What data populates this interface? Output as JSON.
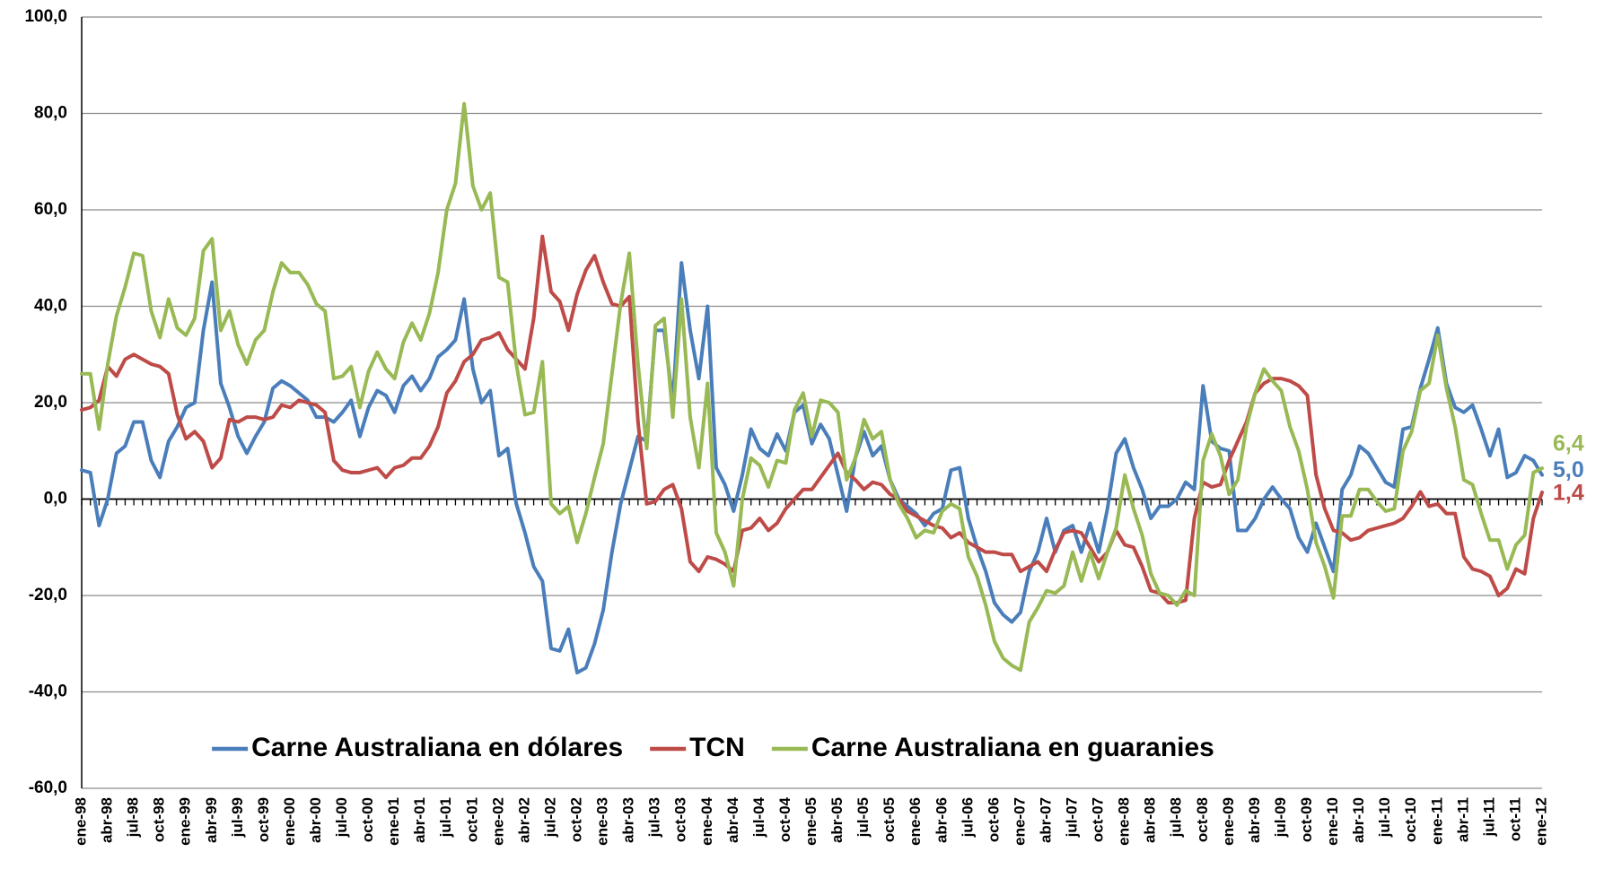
{
  "chart_data": {
    "type": "line",
    "categories": [
      "ene-98",
      null,
      null,
      "abr-98",
      null,
      null,
      "jul-98",
      null,
      null,
      "oct-98",
      null,
      null,
      "ene-99",
      null,
      null,
      "abr-99",
      null,
      null,
      "jul-99",
      null,
      null,
      "oct-99",
      null,
      null,
      "ene-00",
      null,
      null,
      "abr-00",
      null,
      null,
      "jul-00",
      null,
      null,
      "oct-00",
      null,
      null,
      "ene-01",
      null,
      null,
      "abr-01",
      null,
      null,
      "jul-01",
      null,
      null,
      "oct-01",
      null,
      null,
      "ene-02",
      null,
      null,
      "abr-02",
      null,
      null,
      "jul-02",
      null,
      null,
      "oct-02",
      null,
      null,
      "ene-03",
      null,
      null,
      "abr-03",
      null,
      null,
      "jul-03",
      null,
      null,
      "oct-03",
      null,
      null,
      "ene-04",
      null,
      null,
      "abr-04",
      null,
      null,
      "jul-04",
      null,
      null,
      "oct-04",
      null,
      null,
      "ene-05",
      null,
      null,
      "abr-05",
      null,
      null,
      "jul-05",
      null,
      null,
      "oct-05",
      null,
      null,
      "ene-06",
      null,
      null,
      "abr-06",
      null,
      null,
      "jul-06",
      null,
      null,
      "oct-06",
      null,
      null,
      "ene-07",
      null,
      null,
      "abr-07",
      null,
      null,
      "jul-07",
      null,
      null,
      "oct-07",
      null,
      null,
      "ene-08",
      null,
      null,
      "abr-08",
      null,
      null,
      "jul-08",
      null,
      null,
      "oct-08",
      null,
      null,
      "ene-09",
      null,
      null,
      "abr-09",
      null,
      null,
      "jul-09",
      null,
      null,
      "oct-09",
      null,
      null,
      "ene-10",
      null,
      null,
      "abr-10",
      null,
      null,
      "jul-10",
      null,
      null,
      "oct-10",
      null,
      null,
      "ene-11",
      null,
      null,
      "abr-11",
      null,
      null,
      "jul-11",
      null,
      null,
      "oct-11",
      null,
      null,
      "ene-12"
    ],
    "series": [
      {
        "name": "Carne Australiana en dólares",
        "color": "#4a7ebb",
        "values": [
          6,
          5.5,
          -5.5,
          0,
          9.5,
          11,
          16,
          16,
          8,
          4.5,
          12,
          15,
          19,
          20,
          35,
          45,
          24,
          19,
          13,
          9.5,
          13,
          16,
          23,
          24.5,
          23.5,
          22,
          20.5,
          17,
          17,
          16,
          18,
          20.5,
          13,
          19,
          22.5,
          21.5,
          18,
          23.5,
          25.5,
          22.5,
          25,
          29.5,
          31,
          33,
          41.5,
          27,
          20,
          22.5,
          9,
          10.5,
          -1,
          -7,
          -14,
          -17,
          -31,
          -31.5,
          -27,
          -36,
          -35,
          -30,
          -23,
          -11,
          -1,
          6,
          13,
          12,
          35,
          35,
          20,
          49,
          35,
          25,
          40,
          6.5,
          3,
          -2.5,
          5,
          14.5,
          10.5,
          9,
          13.5,
          10,
          18,
          19.5,
          11.5,
          15.5,
          12.5,
          5,
          -2.5,
          8.5,
          14,
          9,
          11,
          4,
          0,
          -1.5,
          -3,
          -5.5,
          -3,
          -2,
          6,
          6.5,
          -4,
          -10,
          -15,
          -21.5,
          -24,
          -25.5,
          -23.5,
          -15,
          -11,
          -4,
          -11,
          -6.5,
          -5.5,
          -11,
          -5,
          -11,
          -2,
          9.5,
          12.5,
          6.5,
          2,
          -4,
          -1.5,
          -1.5,
          0,
          3.5,
          2,
          23.5,
          12,
          10.5,
          10,
          -6.5,
          -6.5,
          -4,
          0,
          2.5,
          0,
          -2,
          -8,
          -11,
          -5,
          -10,
          -15,
          2,
          5,
          11,
          9.5,
          6.5,
          3.5,
          2.5,
          14.5,
          15,
          23,
          29,
          35.5,
          24,
          19,
          18,
          19.5,
          14.5,
          9,
          14.5,
          4.5,
          5.5,
          9,
          8,
          5.0
        ],
        "value_labels": [
          null,
          null,
          null,
          null,
          null,
          null,
          null,
          null,
          null,
          null,
          null,
          null,
          null,
          null,
          null,
          null,
          null,
          null,
          null,
          null,
          null,
          null,
          null,
          null,
          null,
          null,
          null,
          null,
          null,
          null,
          null,
          null,
          null,
          null,
          null,
          null,
          null,
          null,
          null,
          null,
          null,
          null,
          null,
          null,
          null,
          null,
          null,
          null,
          null,
          null,
          null,
          null,
          null,
          null,
          null,
          null,
          null,
          null,
          null,
          null,
          null,
          null,
          null,
          null,
          null,
          null,
          null,
          null,
          null,
          null,
          null,
          null,
          null,
          null,
          null,
          null,
          null,
          null,
          null,
          null,
          null,
          null,
          null,
          null,
          null,
          null,
          null,
          null,
          null,
          null,
          null,
          null,
          null,
          null,
          null,
          null,
          null,
          null,
          null,
          null,
          null,
          null,
          null,
          null,
          null,
          null,
          null,
          null,
          null,
          null,
          null,
          null,
          null,
          null,
          null,
          null,
          null,
          null,
          null,
          null,
          null,
          null,
          null,
          null,
          null,
          null,
          null,
          null,
          null,
          null,
          null,
          null,
          null,
          null,
          null,
          null,
          null,
          null,
          null,
          null,
          null,
          null,
          null,
          null,
          null,
          null,
          null,
          null,
          null,
          null,
          null,
          null,
          null,
          null,
          null,
          null,
          null,
          null,
          null,
          null,
          null,
          null,
          null,
          null,
          null,
          null,
          null,
          null,
          "5,0"
        ]
      },
      {
        "name": "TCN",
        "color": "#be4b48",
        "values": [
          18.5,
          19,
          20.5,
          27.5,
          25.5,
          29,
          30,
          29,
          28,
          27.5,
          26,
          17.5,
          12.5,
          14,
          12,
          6.5,
          8.5,
          16.5,
          16,
          17,
          17,
          16.5,
          17,
          19.5,
          19,
          20.5,
          20,
          19.5,
          18,
          8,
          6,
          5.5,
          5.5,
          6,
          6.5,
          4.5,
          6.5,
          7,
          8.5,
          8.5,
          11,
          15,
          22,
          24.5,
          28.5,
          30,
          33,
          33.5,
          34.5,
          31,
          29,
          27,
          37.5,
          54.5,
          43,
          41,
          35,
          42.5,
          47.5,
          50.5,
          45,
          40.5,
          40,
          42,
          16,
          -1,
          -0.5,
          2,
          3,
          -2,
          -13,
          -15,
          -12,
          -12.5,
          -13.5,
          -15,
          -6.5,
          -6,
          -4,
          -6.5,
          -5,
          -2,
          0,
          2,
          2,
          4.5,
          7,
          9.5,
          5.5,
          4,
          2,
          3.5,
          3,
          1,
          0,
          -2.5,
          -3.5,
          -4.5,
          -5.5,
          -6,
          -8,
          -7,
          -9,
          -10,
          -11,
          -11,
          -11.5,
          -11.5,
          -15,
          -14,
          -13,
          -15,
          -10.5,
          -7,
          -6.5,
          -7,
          -10,
          -13,
          -11,
          -6.5,
          -9.5,
          -10,
          -14,
          -19,
          -19.5,
          -21.5,
          -21.5,
          -21,
          -4,
          3.5,
          2.5,
          3,
          8,
          12,
          16,
          22,
          24,
          25,
          25,
          24.5,
          23.5,
          21.5,
          5,
          -2,
          -6.5,
          -7,
          -8.5,
          -8,
          -6.5,
          -6,
          -5.5,
          -5,
          -4,
          -1.5,
          1.5,
          -1.5,
          -1,
          -3,
          -3,
          -12,
          -14.5,
          -15,
          -16,
          -20,
          -18.5,
          -14.5,
          -15.5,
          -4,
          1.4
        ],
        "value_labels": [
          null,
          null,
          null,
          null,
          null,
          null,
          null,
          null,
          null,
          null,
          null,
          null,
          null,
          null,
          null,
          null,
          null,
          null,
          null,
          null,
          null,
          null,
          null,
          null,
          null,
          null,
          null,
          null,
          null,
          null,
          null,
          null,
          null,
          null,
          null,
          null,
          null,
          null,
          null,
          null,
          null,
          null,
          null,
          null,
          null,
          null,
          null,
          null,
          null,
          null,
          null,
          null,
          null,
          null,
          null,
          null,
          null,
          null,
          null,
          null,
          null,
          null,
          null,
          null,
          null,
          null,
          null,
          null,
          null,
          null,
          null,
          null,
          null,
          null,
          null,
          null,
          null,
          null,
          null,
          null,
          null,
          null,
          null,
          null,
          null,
          null,
          null,
          null,
          null,
          null,
          null,
          null,
          null,
          null,
          null,
          null,
          null,
          null,
          null,
          null,
          null,
          null,
          null,
          null,
          null,
          null,
          null,
          null,
          null,
          null,
          null,
          null,
          null,
          null,
          null,
          null,
          null,
          null,
          null,
          null,
          null,
          null,
          null,
          null,
          null,
          null,
          null,
          null,
          null,
          null,
          null,
          null,
          null,
          null,
          null,
          null,
          null,
          null,
          null,
          null,
          null,
          null,
          null,
          null,
          null,
          null,
          null,
          null,
          null,
          null,
          null,
          null,
          null,
          null,
          null,
          null,
          null,
          null,
          null,
          null,
          null,
          null,
          null,
          null,
          null,
          null,
          null,
          null,
          "1,4"
        ]
      },
      {
        "name": "Carne Australiana en guaranies",
        "color": "#98b954",
        "values": [
          26,
          26,
          14.5,
          28,
          38,
          44,
          51,
          50.5,
          39,
          33.5,
          41.5,
          35.5,
          34,
          37.5,
          51.5,
          54,
          35,
          39,
          32,
          28,
          33,
          35,
          43,
          49,
          47,
          47,
          44.5,
          40.5,
          39,
          25,
          25.5,
          27.5,
          19,
          26.5,
          30.5,
          27,
          25,
          32.5,
          36.5,
          33,
          38.5,
          47,
          60,
          65.5,
          82,
          65,
          60,
          63.5,
          46,
          45,
          28,
          17.5,
          18,
          28.5,
          -1,
          -3,
          -1.5,
          -9,
          -3,
          4.5,
          11.5,
          26,
          40.5,
          51,
          28,
          10.5,
          36,
          37.5,
          17,
          41.5,
          17,
          6.5,
          24,
          -7,
          -11,
          -18,
          0,
          8.5,
          7,
          2.5,
          8,
          7.5,
          18.5,
          22,
          13,
          20.5,
          20,
          18,
          4,
          8.5,
          16.5,
          12.5,
          14,
          4,
          -1,
          -4,
          -8,
          -6.5,
          -7,
          -2.5,
          -1,
          -2,
          -12,
          -16,
          -22,
          -29.5,
          -33,
          -34.5,
          -35.5,
          -25.5,
          -22.5,
          -19,
          -19.5,
          -18,
          -11,
          -17,
          -11,
          -16.5,
          -11,
          -6,
          5,
          -2,
          -7.5,
          -15.5,
          -19.5,
          -20,
          -22,
          -19,
          -20,
          8,
          13.5,
          9,
          1,
          4,
          15,
          22,
          27,
          24.5,
          22.5,
          15,
          10,
          2,
          -9,
          -14,
          -20.5,
          -3.5,
          -3.5,
          2,
          2,
          -0.5,
          -2.5,
          -2,
          10,
          14,
          22.5,
          24,
          34,
          23,
          15,
          4,
          3,
          -3,
          -8.5,
          -8.5,
          -14.5,
          -9.5,
          -7.5,
          5.5,
          6.4
        ],
        "value_labels": [
          null,
          null,
          null,
          null,
          null,
          null,
          null,
          null,
          null,
          null,
          null,
          null,
          null,
          null,
          null,
          null,
          null,
          null,
          null,
          null,
          null,
          null,
          null,
          null,
          null,
          null,
          null,
          null,
          null,
          null,
          null,
          null,
          null,
          null,
          null,
          null,
          null,
          null,
          null,
          null,
          null,
          null,
          null,
          null,
          null,
          null,
          null,
          null,
          null,
          null,
          null,
          null,
          null,
          null,
          null,
          null,
          null,
          null,
          null,
          null,
          null,
          null,
          null,
          null,
          null,
          null,
          null,
          null,
          null,
          null,
          null,
          null,
          null,
          null,
          null,
          null,
          null,
          null,
          null,
          null,
          null,
          null,
          null,
          null,
          null,
          null,
          null,
          null,
          null,
          null,
          null,
          null,
          null,
          null,
          null,
          null,
          null,
          null,
          null,
          null,
          null,
          null,
          null,
          null,
          null,
          null,
          null,
          null,
          null,
          null,
          null,
          null,
          null,
          null,
          null,
          null,
          null,
          null,
          null,
          null,
          null,
          null,
          null,
          null,
          null,
          null,
          null,
          null,
          null,
          null,
          null,
          null,
          null,
          null,
          null,
          null,
          null,
          null,
          null,
          null,
          null,
          null,
          null,
          null,
          null,
          null,
          null,
          null,
          null,
          null,
          null,
          null,
          null,
          null,
          null,
          null,
          null,
          null,
          null,
          null,
          null,
          null,
          null,
          null,
          null,
          null,
          null,
          null,
          "6,4"
        ]
      }
    ],
    "ylim": [
      -60,
      100
    ],
    "yticks": [
      {
        "value": -60,
        "label": "-60,0"
      },
      {
        "value": -40,
        "label": "-40,0"
      },
      {
        "value": -20,
        "label": "-20,0"
      },
      {
        "value": 0,
        "label": "0,0"
      },
      {
        "value": 20,
        "label": "20,0"
      },
      {
        "value": 40,
        "label": "40,0"
      },
      {
        "value": 60,
        "label": "60,0"
      },
      {
        "value": 80,
        "label": "80,0"
      },
      {
        "value": 100,
        "label": "100,0"
      }
    ],
    "grid": true,
    "legend": "bottom"
  }
}
